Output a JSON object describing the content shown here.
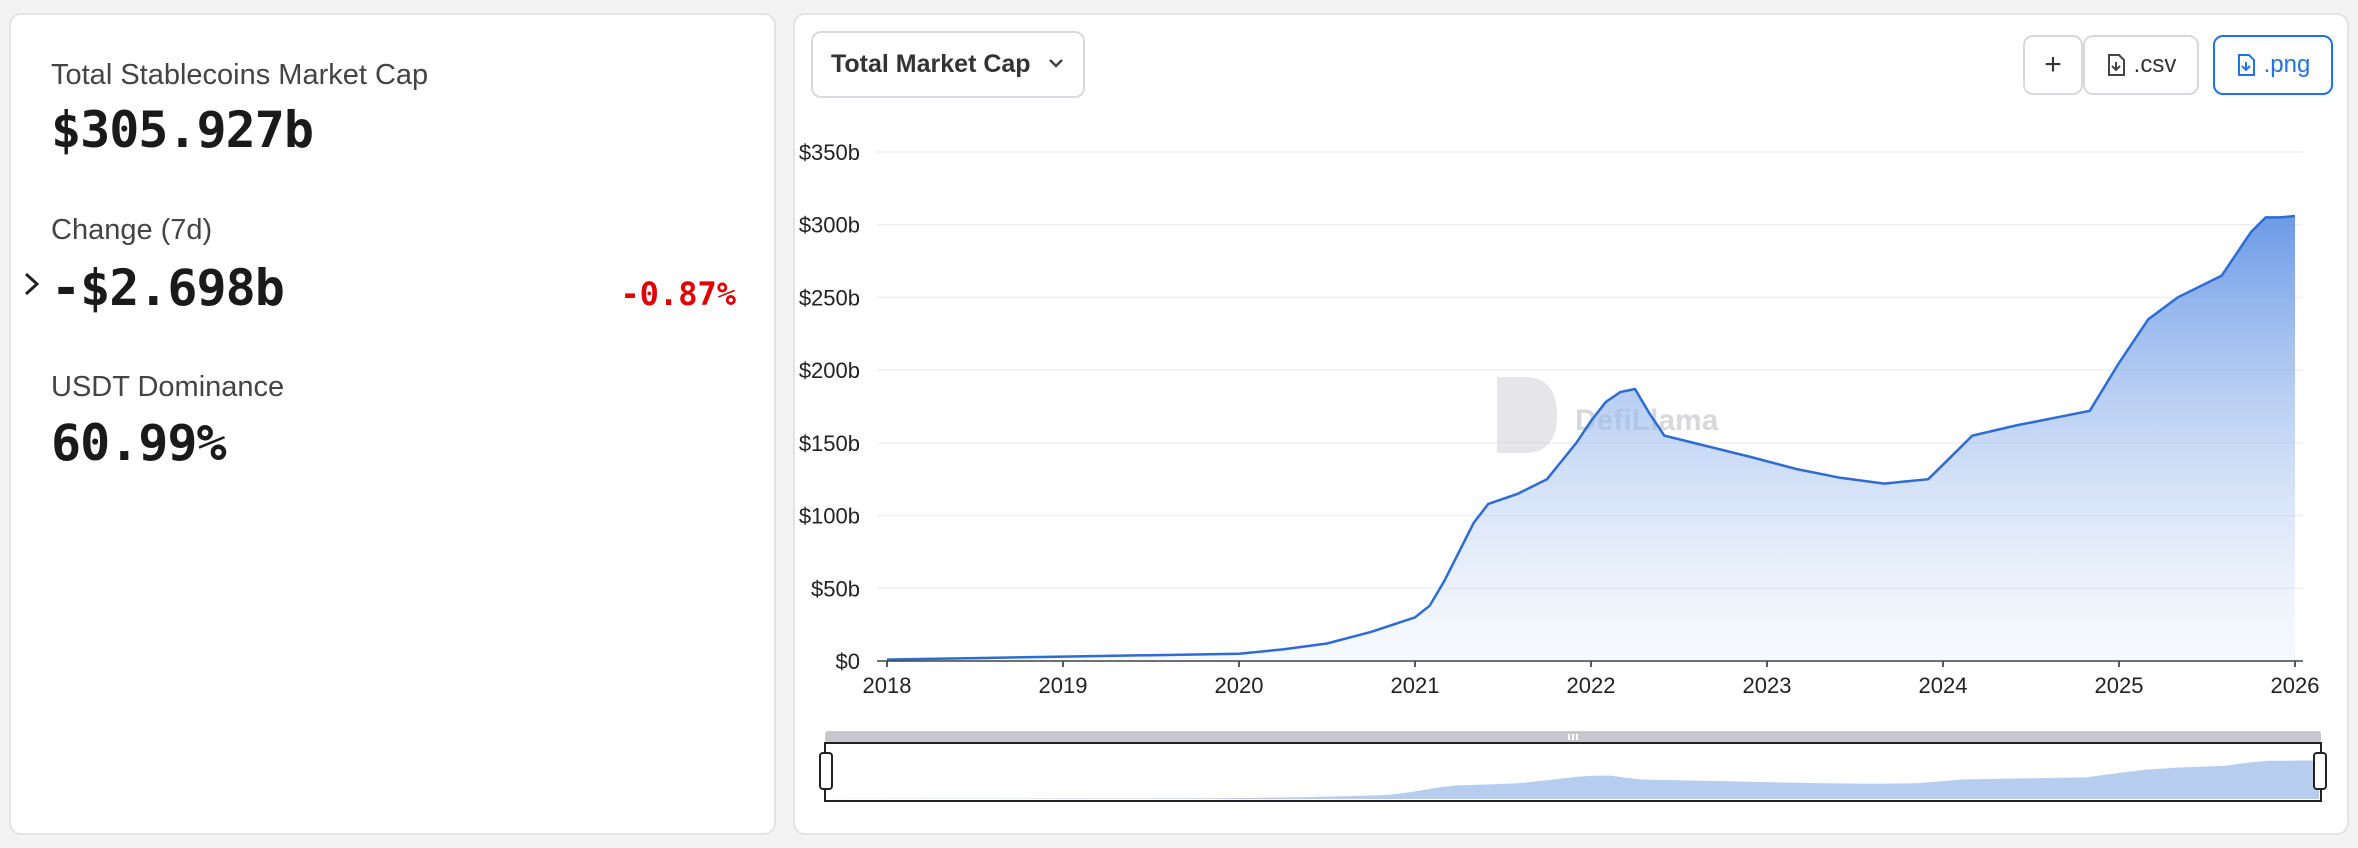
{
  "stats": {
    "market_cap_label": "Total Stablecoins Market Cap",
    "market_cap_value": "$305.927b",
    "change_label": "Change (7d)",
    "change_value": "-$2.698b",
    "change_pct": "-0.87%",
    "change_color": "#e00000",
    "dominance_label": "USDT Dominance",
    "dominance_value": "60.99%"
  },
  "toolbar": {
    "metric_select": "Total Market Cap",
    "add_label": "+",
    "csv_label": ".csv",
    "png_label": ".png",
    "accent": "#2172e5"
  },
  "watermark": "DefiLlama",
  "chart_data": {
    "type": "area",
    "series": [
      {
        "x": [
          "2018-01",
          "2018-07",
          "2019-01",
          "2019-07",
          "2020-01",
          "2020-04",
          "2020-07",
          "2020-10",
          "2021-01",
          "2021-02",
          "2021-03",
          "2021-04",
          "2021-05",
          "2021-06",
          "2021-08",
          "2021-10",
          "2021-12",
          "2022-01",
          "2022-02",
          "2022-03",
          "2022-04",
          "2022-05",
          "2022-06",
          "2022-08",
          "2022-10",
          "2022-12",
          "2023-03",
          "2023-06",
          "2023-09",
          "2023-12",
          "2024-01",
          "2024-03",
          "2024-06",
          "2024-09",
          "2024-11",
          "2025-01",
          "2025-03",
          "2025-05",
          "2025-08",
          "2025-10",
          "2025-11",
          "2025-12",
          "2026-01"
        ],
        "y": [
          1,
          2,
          3,
          4,
          5,
          8,
          12,
          20,
          30,
          38,
          55,
          75,
          95,
          108,
          115,
          125,
          150,
          165,
          178,
          185,
          187,
          170,
          155,
          150,
          145,
          140,
          132,
          126,
          122,
          125,
          135,
          155,
          162,
          168,
          172,
          205,
          235,
          250,
          265,
          295,
          305,
          305,
          306
        ],
        "color": "#2d6bd6"
      }
    ],
    "xticks": [
      "2018",
      "2019",
      "2020",
      "2021",
      "2022",
      "2023",
      "2024",
      "2025",
      "2026"
    ],
    "yticks": [
      "$0",
      "$50b",
      "$100b",
      "$150b",
      "$200b",
      "$250b",
      "$300b",
      "$350b"
    ],
    "ylim": [
      0,
      350
    ],
    "grid": true
  }
}
